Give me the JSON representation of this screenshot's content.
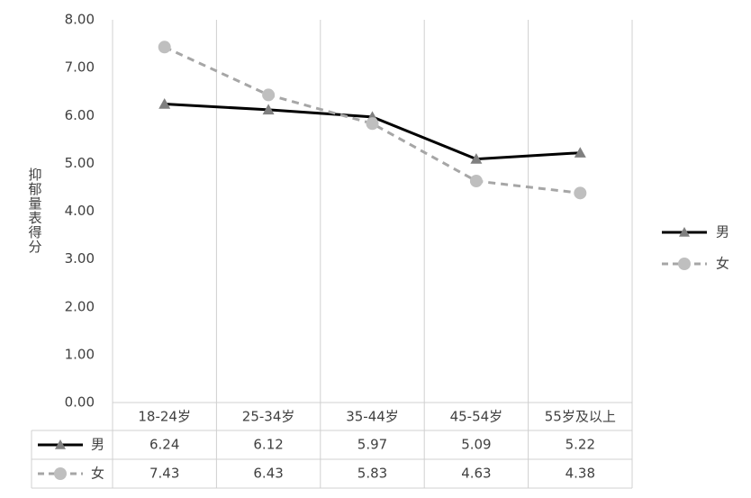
{
  "chart_data": {
    "type": "line",
    "y_label": "抑郁量表得分",
    "categories": [
      "18-24岁",
      "25-34岁",
      "35-44岁",
      "45-54岁",
      "55岁及以上"
    ],
    "series": [
      {
        "name": "男",
        "color": "#000000",
        "marker_color": "#808080",
        "marker": "triangle",
        "dash": false,
        "values": [
          6.24,
          6.12,
          5.97,
          5.09,
          5.22
        ]
      },
      {
        "name": "女",
        "color": "#a6a6a6",
        "marker_color": "#bfbfbf",
        "marker": "circle",
        "dash": true,
        "values": [
          7.43,
          6.43,
          5.83,
          4.63,
          4.38
        ]
      }
    ],
    "ylim": [
      0,
      8
    ],
    "yticks": [
      {
        "value": 0,
        "label": "0.00"
      },
      {
        "value": 1,
        "label": "1.00"
      },
      {
        "value": 2,
        "label": "2.00"
      },
      {
        "value": 3,
        "label": "3.00"
      },
      {
        "value": 4,
        "label": "4.00"
      },
      {
        "value": 5,
        "label": "5.00"
      },
      {
        "value": 6,
        "label": "6.00"
      },
      {
        "value": 7,
        "label": "7.00"
      },
      {
        "value": 8,
        "label": "8.00"
      }
    ],
    "legend": "right",
    "data_table": true
  }
}
